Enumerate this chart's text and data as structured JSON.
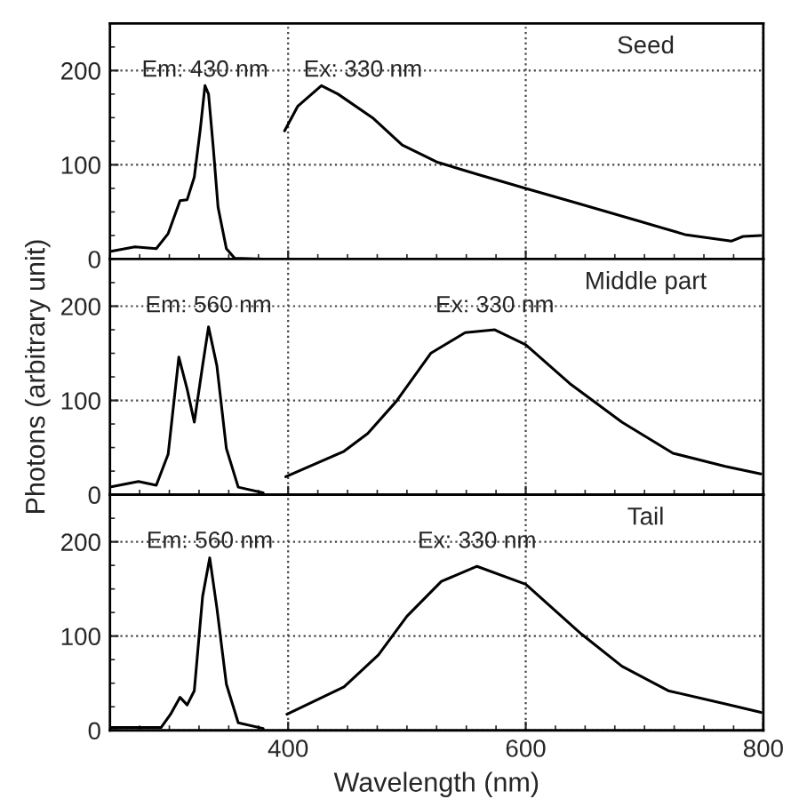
{
  "chart_data": [
    {
      "type": "line",
      "title": "Seed",
      "xlim": [
        250,
        800
      ],
      "xticks": [
        400,
        600,
        800
      ],
      "ylim": [
        0,
        250
      ],
      "yticks": [
        0,
        100,
        200
      ],
      "grid": true,
      "line_style": "solid",
      "marker": "none",
      "tick_labels": "y",
      "annotations": [
        "Em: 430 nm",
        "Ex: 330 nm"
      ],
      "series": [
        {
          "color": "#000000",
          "x": [
            250,
            271,
            289,
            299,
            309,
            315,
            321,
            326,
            330,
            333,
            337,
            341,
            348,
            355,
            379
          ],
          "values": [
            8,
            13,
            11,
            27,
            62,
            63,
            87,
            137,
            184,
            175,
            118,
            55,
            11,
            1,
            0
          ]
        },
        {
          "color": "#000000",
          "x": [
            397,
            408,
            428,
            442,
            471,
            496,
            525,
            559,
            600,
            647,
            696,
            734,
            773,
            783,
            798
          ],
          "values": [
            136,
            162,
            184,
            175,
            150,
            121,
            103,
            90,
            75,
            58,
            40,
            26,
            19,
            24,
            25
          ]
        }
      ]
    },
    {
      "type": "line",
      "title": "Middle part",
      "ylabel": "Photons (arbitrary unit)",
      "xlim": [
        250,
        800
      ],
      "xticks": [
        400,
        600,
        800
      ],
      "ylim": [
        0,
        250
      ],
      "yticks": [
        0,
        100,
        200
      ],
      "grid": true,
      "line_style": "solid",
      "marker": "none",
      "tick_labels": "y",
      "annotations": [
        "Em: 560 nm",
        "Ex: 330 nm"
      ],
      "series": [
        {
          "color": "#000000",
          "x": [
            250,
            274,
            289,
            299,
            308,
            315,
            321,
            328,
            333,
            340,
            348,
            358,
            379
          ],
          "values": [
            8,
            14,
            10,
            43,
            146,
            112,
            77,
            137,
            178,
            137,
            49,
            8,
            2
          ]
        },
        {
          "color": "#000000",
          "x": [
            398,
            447,
            467,
            491,
            520,
            549,
            574,
            600,
            637,
            681,
            724,
            768,
            798
          ],
          "values": [
            19,
            46,
            65,
            99,
            150,
            172,
            175,
            159,
            118,
            77,
            44,
            30,
            22
          ]
        }
      ]
    },
    {
      "type": "line",
      "title": "Tail",
      "xlabel": "Wavelength (nm)",
      "xlim": [
        250,
        800
      ],
      "xticks": [
        400,
        600,
        800
      ],
      "ylim": [
        0,
        250
      ],
      "yticks": [
        0,
        100,
        200
      ],
      "grid": true,
      "line_style": "solid",
      "marker": "none",
      "annotations": [
        "Em: 560 nm",
        "Ex: 330 nm"
      ],
      "series": [
        {
          "color": "#000000",
          "x": [
            250,
            293,
            301,
            309,
            315,
            321,
            328,
            334,
            340,
            348,
            358,
            379
          ],
          "values": [
            3,
            3,
            17,
            35,
            27,
            42,
            142,
            183,
            130,
            49,
            8,
            2
          ]
        },
        {
          "color": "#000000",
          "x": [
            399,
            447,
            476,
            500,
            529,
            559,
            600,
            647,
            681,
            720,
            768,
            798
          ],
          "values": [
            17,
            46,
            80,
            121,
            158,
            174,
            155,
            102,
            68,
            42,
            28,
            19
          ]
        }
      ]
    }
  ]
}
